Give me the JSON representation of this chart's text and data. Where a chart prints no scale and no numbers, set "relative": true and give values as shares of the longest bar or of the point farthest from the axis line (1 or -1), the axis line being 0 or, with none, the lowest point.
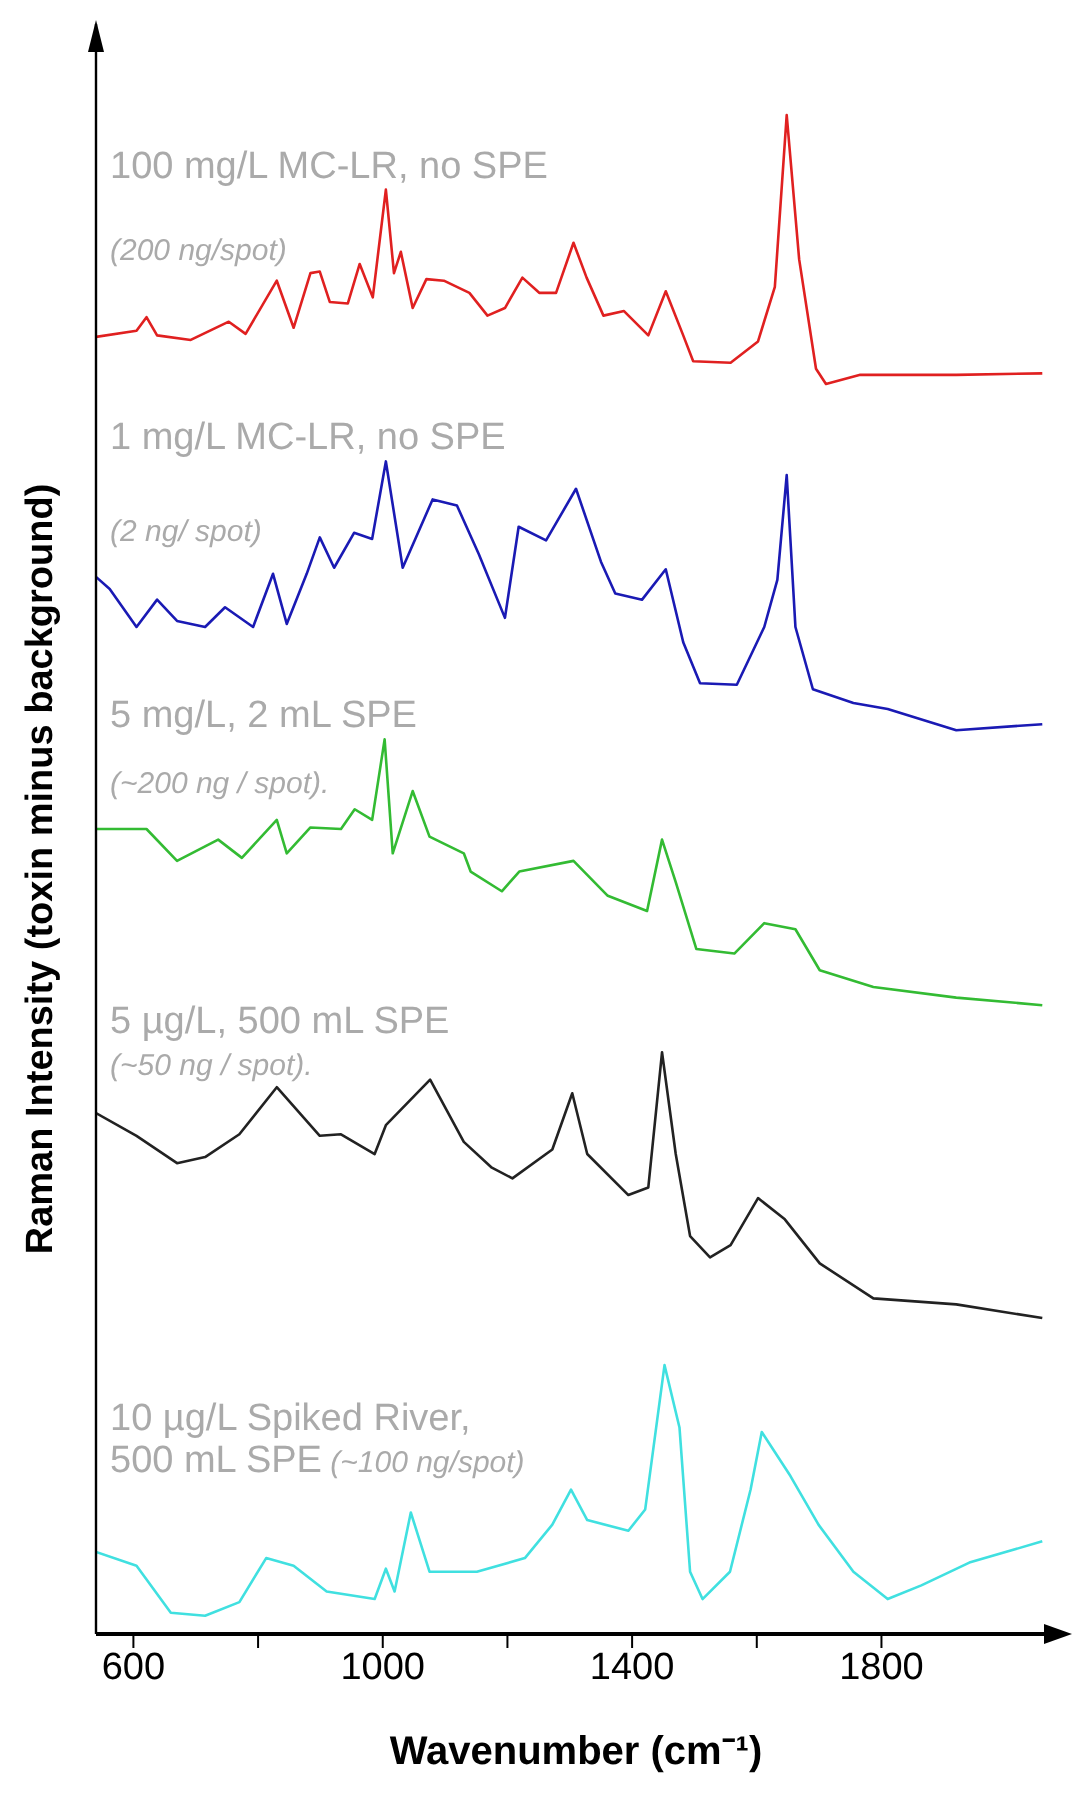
{
  "chart_data": {
    "type": "line",
    "relative": true,
    "xlabel": "Wavenumber (cm⁻¹)",
    "ylabel": "Raman Intensity (toxin minus background)",
    "xlim": [
      540,
      2080
    ],
    "xticks": [
      600,
      {
        "value": 800,
        "label": null
      },
      1000,
      {
        "value": 1200,
        "label": null
      },
      1400,
      {
        "value": 1600,
        "label": null
      },
      1800
    ],
    "annotations": [
      "(200 ng/spot)",
      "(2 ng/ spot)",
      "(~200 ng / spot).",
      "(~50 ng / spot).",
      "(~100 ng/spot)"
    ],
    "series": [
      {
        "name": "100 mg/L MC-LR, no SPE",
        "color": "#e02020",
        "x": [
          540,
          605,
          621,
          638,
          692,
          753,
          780,
          830,
          857,
          884,
          899,
          915,
          944,
          963,
          984,
          1005,
          1018,
          1029,
          1048,
          1070,
          1098,
          1139,
          1168,
          1196,
          1224,
          1251,
          1278,
          1306,
          1327,
          1354,
          1387,
          1426,
          1454,
          1482,
          1498,
          1558,
          1602,
          1629,
          1648,
          1668,
          1695,
          1711,
          1766,
          1920,
          2058
        ],
        "values": [
          0.854,
          0.858,
          0.867,
          0.855,
          0.852,
          0.864,
          0.856,
          0.891,
          0.86,
          0.896,
          0.897,
          0.877,
          0.876,
          0.902,
          0.88,
          0.951,
          0.896,
          0.91,
          0.873,
          0.892,
          0.891,
          0.883,
          0.868,
          0.873,
          0.893,
          0.883,
          0.883,
          0.916,
          0.893,
          0.868,
          0.871,
          0.855,
          0.884,
          0.855,
          0.838,
          0.837,
          0.851,
          0.887,
          1.0,
          0.905,
          0.833,
          0.823,
          0.829,
          0.829,
          0.83
        ]
      },
      {
        "name": "1 mg/L MC-LR, no SPE",
        "color": "#1a1ab4",
        "x": [
          540,
          562,
          605,
          638,
          670,
          715,
          747,
          792,
          824,
          846,
          878,
          899,
          922,
          954,
          983,
          1005,
          1032,
          1080,
          1119,
          1154,
          1196,
          1218,
          1262,
          1310,
          1350,
          1373,
          1416,
          1454,
          1482,
          1509,
          1568,
          1612,
          1633,
          1648,
          1662,
          1690,
          1755,
          1810,
          1920,
          2058
        ],
        "values": [
          0.696,
          0.688,
          0.663,
          0.681,
          0.667,
          0.663,
          0.676,
          0.663,
          0.698,
          0.665,
          0.698,
          0.722,
          0.702,
          0.725,
          0.721,
          0.772,
          0.702,
          0.747,
          0.743,
          0.711,
          0.669,
          0.729,
          0.72,
          0.754,
          0.706,
          0.685,
          0.681,
          0.701,
          0.653,
          0.626,
          0.625,
          0.663,
          0.694,
          0.763,
          0.663,
          0.622,
          0.613,
          0.609,
          0.595,
          0.599
        ]
      },
      {
        "name": "5 mg/L, 2 mL SPE",
        "color": "#33bb33",
        "x": [
          540,
          621,
          670,
          736,
          774,
          830,
          846,
          884,
          933,
          955,
          983,
          1003,
          1016,
          1048,
          1075,
          1130,
          1141,
          1191,
          1219,
          1306,
          1361,
          1424,
          1448,
          1470,
          1503,
          1564,
          1612,
          1662,
          1701,
          1787,
          1920,
          2058
        ],
        "values": [
          0.53,
          0.53,
          0.509,
          0.523,
          0.511,
          0.536,
          0.514,
          0.531,
          0.53,
          0.543,
          0.536,
          0.589,
          0.514,
          0.555,
          0.525,
          0.514,
          0.502,
          0.489,
          0.502,
          0.509,
          0.486,
          0.476,
          0.523,
          0.495,
          0.451,
          0.448,
          0.468,
          0.464,
          0.437,
          0.426,
          0.419,
          0.414
        ]
      },
      {
        "name": "5 µg/L, 500 mL SPE",
        "color": "#222222",
        "x": [
          540,
          605,
          670,
          715,
          770,
          830,
          899,
          933,
          987,
          1005,
          1076,
          1130,
          1175,
          1208,
          1272,
          1304,
          1328,
          1394,
          1426,
          1448,
          1470,
          1493,
          1525,
          1558,
          1602,
          1645,
          1701,
          1787,
          1920,
          2058
        ],
        "values": [
          0.343,
          0.328,
          0.31,
          0.314,
          0.329,
          0.36,
          0.328,
          0.329,
          0.316,
          0.335,
          0.365,
          0.324,
          0.307,
          0.3,
          0.319,
          0.356,
          0.316,
          0.289,
          0.294,
          0.383,
          0.316,
          0.262,
          0.248,
          0.256,
          0.287,
          0.273,
          0.244,
          0.221,
          0.217,
          0.208
        ]
      },
      {
        "name": "10 µg/L Spiked River, 500 mL SPE",
        "color": "#40e0e0",
        "x": [
          540,
          605,
          660,
          715,
          770,
          813,
          857,
          910,
          987,
          1005,
          1019,
          1045,
          1075,
          1151,
          1228,
          1272,
          1302,
          1328,
          1394,
          1421,
          1452,
          1476,
          1493,
          1513,
          1557,
          1590,
          1608,
          1654,
          1699,
          1755,
          1810,
          1864,
          1941,
          2058
        ],
        "values": [
          0.054,
          0.045,
          0.014,
          0.012,
          0.021,
          0.05,
          0.045,
          0.028,
          0.023,
          0.043,
          0.028,
          0.08,
          0.041,
          0.041,
          0.05,
          0.072,
          0.095,
          0.075,
          0.068,
          0.082,
          0.177,
          0.136,
          0.041,
          0.023,
          0.041,
          0.095,
          0.133,
          0.104,
          0.072,
          0.041,
          0.023,
          0.032,
          0.047,
          0.061
        ]
      }
    ]
  }
}
